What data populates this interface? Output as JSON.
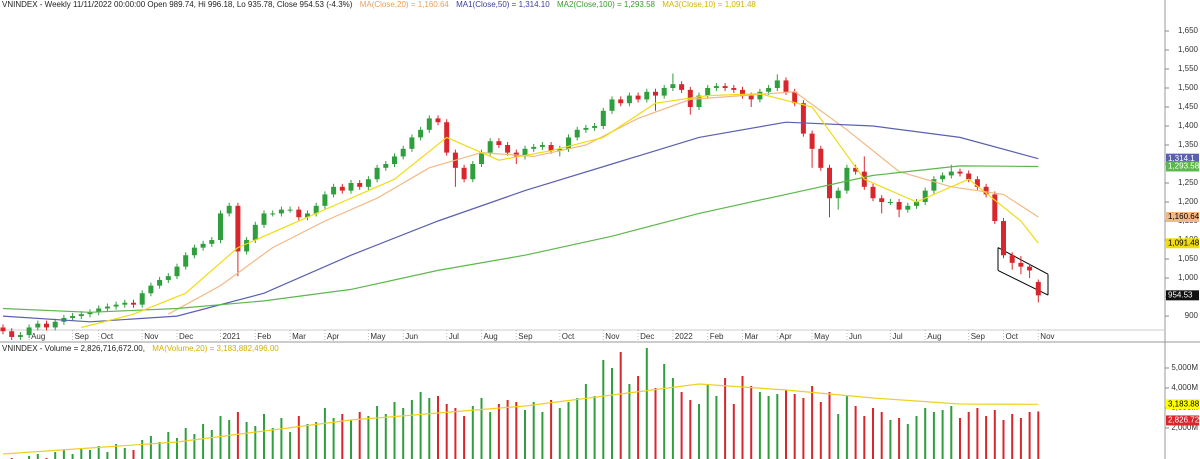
{
  "chart_data": {
    "type": "candlestick",
    "title": "VNINDEX - Weekly 11/11/2022 00:00:00 Open 989.74, Hi 996.18, Lo 935.78, Close 954.53 (-4.3%)",
    "categories": [
      null,
      null,
      null,
      "Aug",
      null,
      null,
      null,
      null,
      "Sep",
      null,
      null,
      "Oct",
      null,
      null,
      null,
      null,
      "Nov",
      null,
      null,
      null,
      "Dec",
      null,
      null,
      null,
      null,
      "2021",
      null,
      null,
      null,
      "Feb",
      null,
      null,
      null,
      "Mar",
      null,
      null,
      null,
      "Apr",
      null,
      null,
      null,
      null,
      "May",
      null,
      null,
      null,
      "Jun",
      null,
      null,
      null,
      null,
      "Jul",
      null,
      null,
      null,
      "Aug",
      null,
      null,
      null,
      "Sep",
      null,
      null,
      null,
      null,
      "Oct",
      null,
      null,
      null,
      null,
      "Nov",
      null,
      null,
      null,
      "Dec",
      null,
      null,
      null,
      "2022",
      null,
      null,
      null,
      "Feb",
      null,
      null,
      null,
      "Mar",
      null,
      null,
      null,
      "Apr",
      null,
      null,
      null,
      "May",
      null,
      null,
      null,
      "Jun",
      null,
      null,
      null,
      null,
      "Jul",
      null,
      null,
      null,
      "Aug",
      null,
      null,
      null,
      null,
      "Sep",
      null,
      null,
      null,
      "Oct",
      null,
      null,
      null,
      "Nov"
    ],
    "open": [
      870,
      860,
      845,
      850,
      870,
      880,
      870,
      885,
      895,
      900,
      905,
      910,
      920,
      925,
      930,
      935,
      930,
      960,
      980,
      995,
      1005,
      1030,
      1060,
      1080,
      1090,
      1100,
      1170,
      1190,
      1070,
      1100,
      1140,
      1170,
      1170,
      1180,
      1180,
      1160,
      1170,
      1190,
      1220,
      1240,
      1230,
      1250,
      1240,
      1260,
      1290,
      1300,
      1320,
      1340,
      1370,
      1390,
      1420,
      1410,
      1330,
      1290,
      1260,
      1300,
      1330,
      1360,
      1350,
      1330,
      1320,
      1340,
      1345,
      1350,
      1335,
      1340,
      1370,
      1390,
      1395,
      1400,
      1440,
      1470,
      1460,
      1480,
      1470,
      1490,
      1480,
      1500,
      1510,
      1495,
      1450,
      1480,
      1500,
      1505,
      1500,
      1495,
      1480,
      1470,
      1490,
      1500,
      1520,
      1490,
      1460,
      1380,
      1340,
      1290,
      1210,
      1230,
      1290,
      1280,
      1240,
      1210,
      1200,
      1200,
      1180,
      1190,
      1200,
      1230,
      1260,
      1270,
      1280,
      1275,
      1260,
      1240,
      1220,
      1150,
      1060,
      1040,
      1030,
      989.74
    ],
    "high": [
      878,
      868,
      858,
      878,
      888,
      888,
      893,
      903,
      908,
      913,
      918,
      928,
      933,
      938,
      943,
      943,
      968,
      988,
      1003,
      1013,
      1038,
      1068,
      1088,
      1098,
      1108,
      1178,
      1198,
      1198,
      1108,
      1148,
      1178,
      1178,
      1188,
      1188,
      1188,
      1178,
      1198,
      1228,
      1248,
      1248,
      1258,
      1258,
      1268,
      1298,
      1308,
      1328,
      1348,
      1378,
      1398,
      1428,
      1428,
      1418,
      1338,
      1298,
      1308,
      1338,
      1368,
      1368,
      1358,
      1338,
      1348,
      1353,
      1358,
      1358,
      1348,
      1378,
      1398,
      1403,
      1408,
      1448,
      1478,
      1478,
      1488,
      1488,
      1498,
      1498,
      1508,
      1538,
      1518,
      1503,
      1488,
      1508,
      1513,
      1513,
      1508,
      1503,
      1488,
      1498,
      1508,
      1536,
      1528,
      1498,
      1468,
      1388,
      1348,
      1298,
      1238,
      1298,
      1298,
      1320,
      1248,
      1218,
      1208,
      1208,
      1198,
      1208,
      1238,
      1268,
      1278,
      1298,
      1288,
      1283,
      1268,
      1248,
      1228,
      1158,
      1068,
      1058,
      1038,
      996.18
    ],
    "low": [
      852,
      837,
      837,
      842,
      862,
      862,
      862,
      877,
      887,
      892,
      897,
      902,
      912,
      917,
      922,
      922,
      922,
      952,
      972,
      987,
      997,
      1022,
      1052,
      1072,
      1082,
      1092,
      1162,
      1005,
      1062,
      1092,
      1132,
      1162,
      1162,
      1172,
      1152,
      1152,
      1162,
      1182,
      1212,
      1222,
      1222,
      1232,
      1232,
      1252,
      1282,
      1292,
      1312,
      1332,
      1362,
      1382,
      1402,
      1322,
      1240,
      1252,
      1252,
      1292,
      1322,
      1342,
      1322,
      1300,
      1312,
      1332,
      1337,
      1327,
      1320,
      1332,
      1362,
      1382,
      1387,
      1392,
      1432,
      1452,
      1452,
      1462,
      1462,
      1440,
      1472,
      1492,
      1487,
      1430,
      1442,
      1472,
      1492,
      1492,
      1487,
      1472,
      1450,
      1462,
      1482,
      1492,
      1482,
      1452,
      1372,
      1290,
      1282,
      1160,
      1180,
      1222,
      1272,
      1232,
      1202,
      1170,
      1192,
      1160,
      1172,
      1182,
      1192,
      1222,
      1252,
      1262,
      1267,
      1252,
      1232,
      1212,
      1142,
      1052,
      1022,
      1010,
      1000,
      935.78
    ],
    "close": [
      860,
      845,
      850,
      870,
      880,
      870,
      885,
      895,
      900,
      905,
      910,
      920,
      925,
      930,
      935,
      930,
      960,
      980,
      995,
      1005,
      1030,
      1060,
      1080,
      1090,
      1100,
      1170,
      1190,
      1070,
      1100,
      1140,
      1170,
      1170,
      1180,
      1180,
      1160,
      1170,
      1190,
      1220,
      1240,
      1230,
      1250,
      1240,
      1260,
      1290,
      1300,
      1320,
      1340,
      1370,
      1390,
      1420,
      1410,
      1330,
      1290,
      1260,
      1300,
      1330,
      1360,
      1350,
      1330,
      1320,
      1340,
      1345,
      1350,
      1335,
      1340,
      1370,
      1390,
      1395,
      1400,
      1440,
      1470,
      1460,
      1480,
      1470,
      1490,
      1480,
      1500,
      1510,
      1495,
      1450,
      1480,
      1500,
      1505,
      1500,
      1495,
      1480,
      1470,
      1490,
      1500,
      1520,
      1490,
      1460,
      1380,
      1340,
      1290,
      1210,
      1230,
      1290,
      1280,
      1240,
      1210,
      1200,
      1200,
      1180,
      1190,
      1200,
      1230,
      1260,
      1270,
      1280,
      1275,
      1260,
      1240,
      1220,
      1150,
      1060,
      1040,
      1030,
      1020,
      954.53
    ],
    "last_label": "954.53",
    "up_color": "#2f9e3c",
    "down_color": "#d9262c",
    "ylim": [
      837,
      1721
    ],
    "yticks": [
      900,
      950,
      {
        "value": 1000,
        "label": "1,000"
      },
      {
        "value": 1050,
        "label": "1,050"
      },
      {
        "value": 1100,
        "label": "1,100"
      },
      {
        "value": 1150,
        "label": "1,150"
      },
      {
        "value": 1200,
        "label": "1,200"
      },
      {
        "value": 1250,
        "label": "1,250"
      },
      {
        "value": 1300,
        "label": "1,300"
      },
      {
        "value": 1350,
        "label": "1,350"
      },
      {
        "value": 1400,
        "label": "1,400"
      },
      {
        "value": 1450,
        "label": "1,450"
      },
      {
        "value": 1500,
        "label": "1,500"
      },
      {
        "value": 1550,
        "label": "1,550"
      },
      {
        "value": 1600,
        "label": "1,600"
      },
      {
        "value": 1650,
        "label": "1,650"
      }
    ],
    "lines": [
      {
        "label": "MA(Close,20) = 1,160.64",
        "color": "#f2b983",
        "box_text": "#000000",
        "last_label": "1,160.64",
        "x": [
          19,
          25,
          31,
          37,
          43,
          49,
          55,
          61,
          67,
          73,
          79,
          85,
          91,
          97,
          103,
          109,
          115,
          119
        ],
        "values": [
          905,
          980,
          1080,
          1150,
          1210,
          1290,
          1330,
          1320,
          1350,
          1420,
          1470,
          1480,
          1490,
          1390,
          1280,
          1240,
          1220,
          1160.64
        ]
      },
      {
        "label": "MA1(Close,50) = 1,314.10",
        "color": "#5a5fb0",
        "box_text": "#ffffff",
        "last_label": "1,314.1",
        "x": [
          0,
          10,
          20,
          30,
          40,
          50,
          60,
          70,
          80,
          90,
          100,
          110,
          119
        ],
        "values": [
          900,
          885,
          900,
          960,
          1060,
          1150,
          1230,
          1300,
          1370,
          1410,
          1400,
          1370,
          1314.1
        ]
      },
      {
        "label": "MA2(Close,100) = 1,293.58",
        "color": "#5cb84c",
        "box_text": "#ffffff",
        "last_label": "1,293.58",
        "x": [
          0,
          10,
          20,
          30,
          40,
          50,
          60,
          70,
          80,
          90,
          100,
          110,
          119
        ],
        "values": [
          920,
          910,
          920,
          940,
          970,
          1020,
          1060,
          1110,
          1170,
          1220,
          1270,
          1295,
          1293.58
        ]
      },
      {
        "label": "MA3(Close,10) = 1,091.48",
        "color": "#f0dc10",
        "box_text": "#000000",
        "last_label": "1,091.48",
        "x": [
          9,
          15,
          21,
          27,
          33,
          39,
          45,
          51,
          57,
          63,
          69,
          75,
          81,
          87,
          93,
          99,
          105,
          111,
          117,
          119
        ],
        "values": [
          870,
          905,
          960,
          1080,
          1140,
          1200,
          1260,
          1370,
          1310,
          1335,
          1370,
          1460,
          1480,
          1485,
          1450,
          1260,
          1200,
          1260,
          1150,
          1091.48
        ]
      }
    ],
    "volume": {
      "title": "VNINDEX - Volume = 2,826,716,672.00,",
      "values": [
        300,
        500,
        400,
        600,
        700,
        500,
        800,
        900,
        700,
        1000,
        900,
        1100,
        800,
        1200,
        1000,
        900,
        1400,
        1600,
        1300,
        1800,
        1500,
        2000,
        1700,
        2200,
        1900,
        2600,
        2400,
        2800,
        2300,
        2100,
        2700,
        2000,
        2500,
        1800,
        2600,
        2200,
        2300,
        3000,
        2500,
        2700,
        2400,
        2800,
        2600,
        3100,
        2700,
        3300,
        3000,
        3400,
        3800,
        3500,
        3600,
        3200,
        3000,
        2600,
        3100,
        3500,
        2800,
        3200,
        3400,
        3300,
        2900,
        3300,
        2800,
        3400,
        3000,
        3300,
        3500,
        4200,
        3600,
        5400,
        5000,
        5800,
        4200,
        4600,
        6000,
        4000,
        5200,
        4500,
        3800,
        3400,
        3200,
        4200,
        3600,
        4500,
        3200,
        4600,
        4100,
        3800,
        3600,
        3700,
        3900,
        3700,
        3500,
        4100,
        3300,
        3800,
        2700,
        3600,
        3100,
        2600,
        3000,
        2800,
        2400,
        2500,
        2200,
        2600,
        3000,
        2800,
        2900,
        3100,
        2500,
        2800,
        3000,
        2600,
        2900,
        2400,
        2700,
        2500,
        2800,
        2826.72
      ],
      "last_label": "2,826.72",
      "ylim": [
        450,
        6150
      ],
      "yticks": [
        {
          "value": 2000,
          "label": "2,000M"
        },
        {
          "value": 3000,
          "label": "3,000M"
        },
        {
          "value": 4000,
          "label": "4,000M"
        },
        {
          "value": 5000,
          "label": "5,000M"
        }
      ],
      "ma": {
        "label": "MA(Volume,20) = 3,183,882,496.00",
        "color": "#f0d020",
        "last_label": "3,183.88",
        "x": [
          0,
          20,
          40,
          60,
          80,
          90,
          100,
          110,
          119
        ],
        "values": [
          700,
          1300,
          2400,
          3100,
          4200,
          3900,
          3500,
          3200,
          3183.88
        ]
      }
    }
  }
}
